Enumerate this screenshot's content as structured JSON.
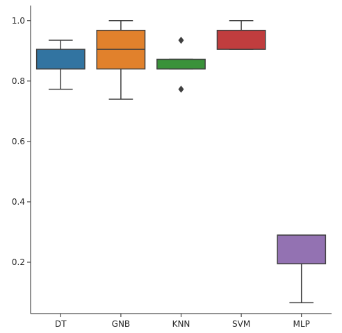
{
  "chart_data": {
    "type": "box",
    "title": "",
    "xlabel": "",
    "ylabel": "",
    "ylim": [
      0.03,
      1.05
    ],
    "yticks": [
      0.2,
      0.4,
      0.6,
      0.8,
      1.0
    ],
    "ytick_labels": [
      "0.2",
      "0.4",
      "0.6",
      "0.8",
      "1.0"
    ],
    "grid": false,
    "legend": "none",
    "categories": [
      "DT",
      "GNB",
      "KNN",
      "SVM",
      "MLP"
    ],
    "boxes": [
      {
        "category": "DT",
        "color": "#3274a1",
        "whisker_low": 0.773,
        "q1": 0.84,
        "median": 0.84,
        "q3": 0.905,
        "whisker_high": 0.935,
        "outliers": []
      },
      {
        "category": "GNB",
        "color": "#e1812c",
        "whisker_low": 0.74,
        "q1": 0.84,
        "median": 0.905,
        "q3": 0.968,
        "whisker_high": 1.0,
        "outliers": []
      },
      {
        "category": "KNN",
        "color": "#3a923a",
        "whisker_low": 0.84,
        "q1": 0.84,
        "median": 0.84,
        "q3": 0.872,
        "whisker_high": 0.872,
        "outliers": [
          0.935,
          0.773
        ]
      },
      {
        "category": "SVM",
        "color": "#c03d3e",
        "whisker_low": 0.905,
        "q1": 0.905,
        "median": 0.968,
        "q3": 0.968,
        "whisker_high": 1.0,
        "outliers": []
      },
      {
        "category": "MLP",
        "color": "#9372b2",
        "whisker_low": 0.066,
        "q1": 0.195,
        "median": 0.29,
        "q3": 0.29,
        "whisker_high": 0.29,
        "outliers": []
      }
    ],
    "line_color": "#3f3f3f",
    "axis_color": "#262626"
  }
}
